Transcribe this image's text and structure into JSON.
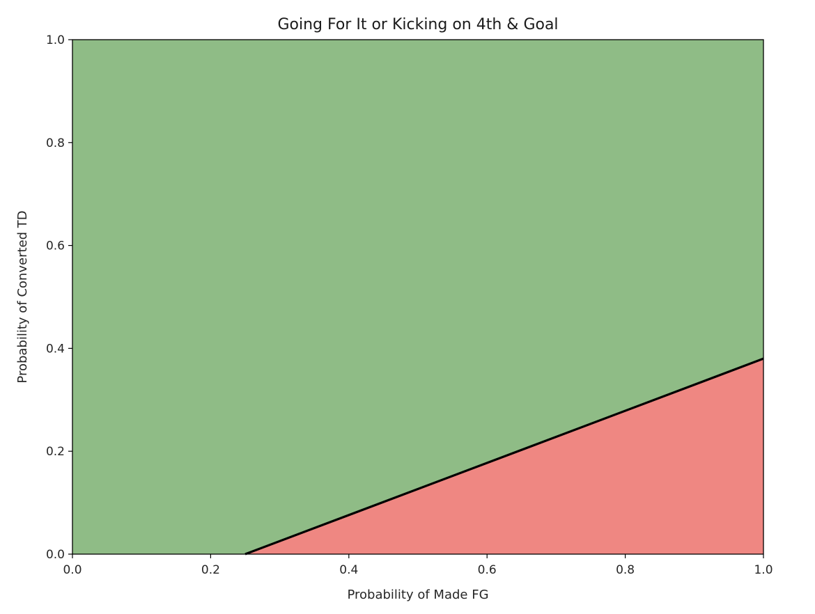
{
  "chart_data": {
    "type": "area",
    "title": "Going For It or Kicking on 4th & Goal",
    "xlabel": "Probability of Made FG",
    "ylabel": "Probability of Converted TD",
    "xlim": [
      0,
      1
    ],
    "ylim": [
      0,
      1
    ],
    "x_ticks": [
      "0.0",
      "0.2",
      "0.4",
      "0.6",
      "0.8",
      "1.0"
    ],
    "y_ticks": [
      "0.0",
      "0.2",
      "0.4",
      "0.6",
      "0.8",
      "1.0"
    ],
    "grid": false,
    "legend": "none",
    "boundary_line": {
      "x": [
        0.25,
        1.0
      ],
      "y": [
        0.0,
        0.38
      ],
      "color": "#000000"
    },
    "regions": [
      {
        "region": "above boundary",
        "color": "#8fbc86"
      },
      {
        "region": "below boundary",
        "color": "#ef8782"
      }
    ]
  }
}
